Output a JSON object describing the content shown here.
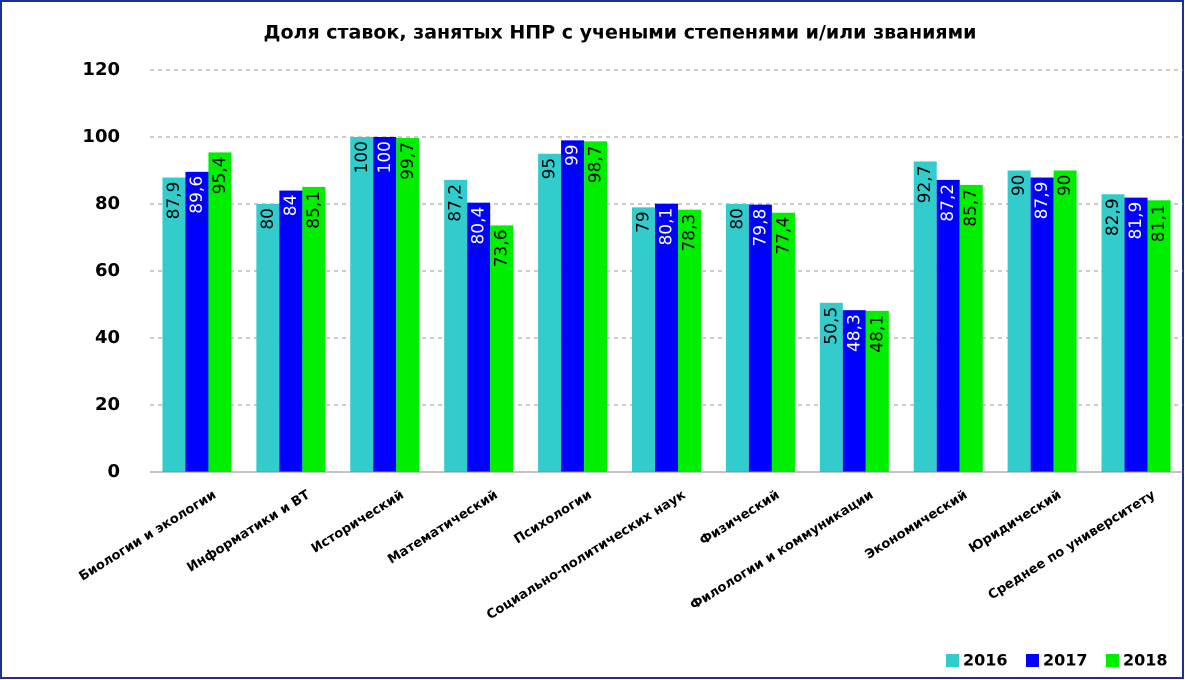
{
  "chart_data": {
    "type": "bar",
    "title": "Доля ставок, занятых НПР с учеными степенями и/или званиями",
    "categories": [
      "Биологии и экологии",
      "Информатики и ВТ",
      "Исторический",
      "Математический",
      "Психологии",
      "Социально-политических наук",
      "Физический",
      "Филологии и коммуникации",
      "Экономический",
      "Юридический",
      "Среднее по университету"
    ],
    "series": [
      {
        "name": "2016",
        "color": "#33cccc",
        "label_color": "#000000",
        "values": [
          87.9,
          80,
          100,
          87.2,
          95,
          79,
          80,
          50.5,
          92.7,
          90,
          82.9
        ],
        "value_labels": [
          "87,9",
          "80",
          "100",
          "87,2",
          "95",
          "79",
          "80",
          "50,5",
          "92,7",
          "90",
          "82,9"
        ]
      },
      {
        "name": "2017",
        "color": "#0000ff",
        "label_color": "#ffffff",
        "values": [
          89.6,
          84,
          100,
          80.4,
          99,
          80.1,
          79.8,
          48.3,
          87.2,
          87.9,
          81.9
        ],
        "value_labels": [
          "89,6",
          "84",
          "100",
          "80,4",
          "99",
          "80,1",
          "79,8",
          "48,3",
          "87,2",
          "87,9",
          "81,9"
        ]
      },
      {
        "name": "2018",
        "color": "#00ee00",
        "label_color": "#000000",
        "values": [
          95.4,
          85.1,
          99.7,
          73.6,
          98.7,
          78.3,
          77.4,
          48.1,
          85.7,
          90,
          81.1
        ],
        "value_labels": [
          "95,4",
          "85,1",
          "99,7",
          "73,6",
          "98,7",
          "78,3",
          "77,4",
          "48,1",
          "85,7",
          "90",
          "81,1"
        ]
      }
    ],
    "ylim": [
      0,
      120
    ],
    "yticks": [
      0,
      20,
      40,
      60,
      80,
      100,
      120
    ],
    "grid": true,
    "legend": "bottom-right"
  }
}
